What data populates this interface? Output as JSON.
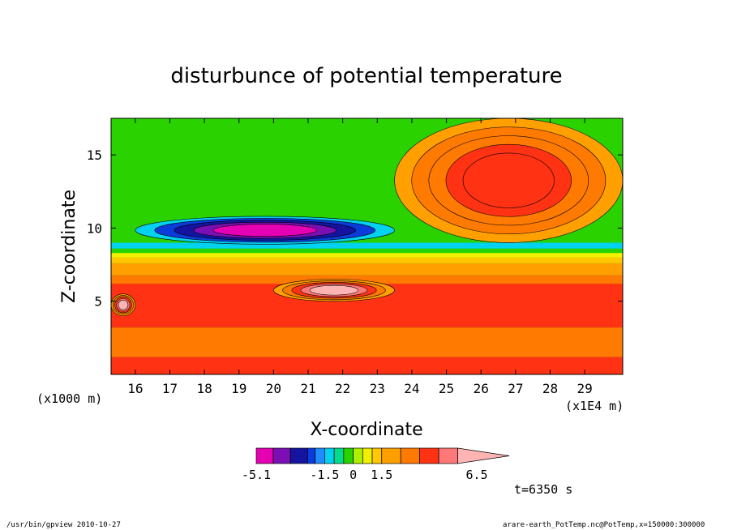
{
  "chart_data": {
    "type": "heatmap",
    "title": "disturbunce of potential temperature",
    "xlabel": "X-coordinate",
    "ylabel": "Z-coordinate",
    "x_unit_left": "(x1000 m)",
    "x_unit_right": "(x1E4 m)",
    "xlim": [
      15.3,
      30.1
    ],
    "ylim": [
      0,
      17.5
    ],
    "x_ticks": [
      "16",
      "17",
      "18",
      "19",
      "20",
      "21",
      "22",
      "23",
      "24",
      "25",
      "26",
      "27",
      "28",
      "29"
    ],
    "y_ticks": [
      "5",
      "10",
      "15"
    ],
    "colorbar": {
      "levels": [
        -5.1,
        -4.2,
        -3.3,
        -2.4,
        -2.0,
        -1.5,
        -1.0,
        -0.5,
        0,
        0.5,
        1.0,
        1.5,
        2.5,
        3.5,
        4.5,
        5.5,
        6.5
      ],
      "labels": [
        "-5.1",
        "-1.5",
        "0",
        "1.5",
        "6.5"
      ],
      "colors": [
        "#e600b4",
        "#7a10b4",
        "#1414a0",
        "#0a3cdc",
        "#1e8cff",
        "#00d2f0",
        "#00dc8c",
        "#2ad200",
        "#aaf000",
        "#f0f000",
        "#ffc800",
        "#ffa000",
        "#ff7a00",
        "#ff3214",
        "#ff7878",
        "#ffb4b4"
      ]
    },
    "fields": {
      "background": 0.2,
      "bands": [
        {
          "z_range": [
            0,
            1.2
          ],
          "value": 4.2
        },
        {
          "z_range": [
            1.2,
            3.2
          ],
          "value": 3.2
        },
        {
          "z_range": [
            3.2,
            6.2
          ],
          "value": 4.2
        },
        {
          "z_range": [
            6.2,
            6.8
          ],
          "value": 3.0
        },
        {
          "z_range": [
            6.8,
            7.6
          ],
          "value": 2.2
        },
        {
          "z_range": [
            7.6,
            8.0
          ],
          "value": 1.2
        },
        {
          "z_range": [
            8.0,
            8.3
          ],
          "value": 0.7
        },
        {
          "z_range": [
            8.3,
            8.6
          ],
          "value": -0.3
        },
        {
          "z_range": [
            8.6,
            9.0
          ],
          "value": -1.2
        }
      ],
      "features": [
        {
          "type": "cold_core",
          "x": [
            16.0,
            23.5
          ],
          "z": [
            8.9,
            10.8
          ],
          "min": -5.1
        },
        {
          "type": "warm_core",
          "x": [
            20.0,
            23.5
          ],
          "z": [
            5.0,
            6.5
          ],
          "max": 5.5
        },
        {
          "type": "warm_core",
          "x": [
            15.3,
            16.0
          ],
          "z": [
            4.0,
            5.5
          ],
          "max": 5.5
        },
        {
          "type": "warm_region",
          "x": [
            23.5,
            30.1
          ],
          "z": [
            9.0,
            17.5
          ],
          "max": 4.0
        }
      ]
    }
  },
  "annotations": {
    "time": "t=6350 s",
    "footer_left": "/usr/bin/gpview  2010-10-27",
    "footer_right": "arare-earth_PotTemp.nc@PotTemp,x=150000:300000"
  }
}
